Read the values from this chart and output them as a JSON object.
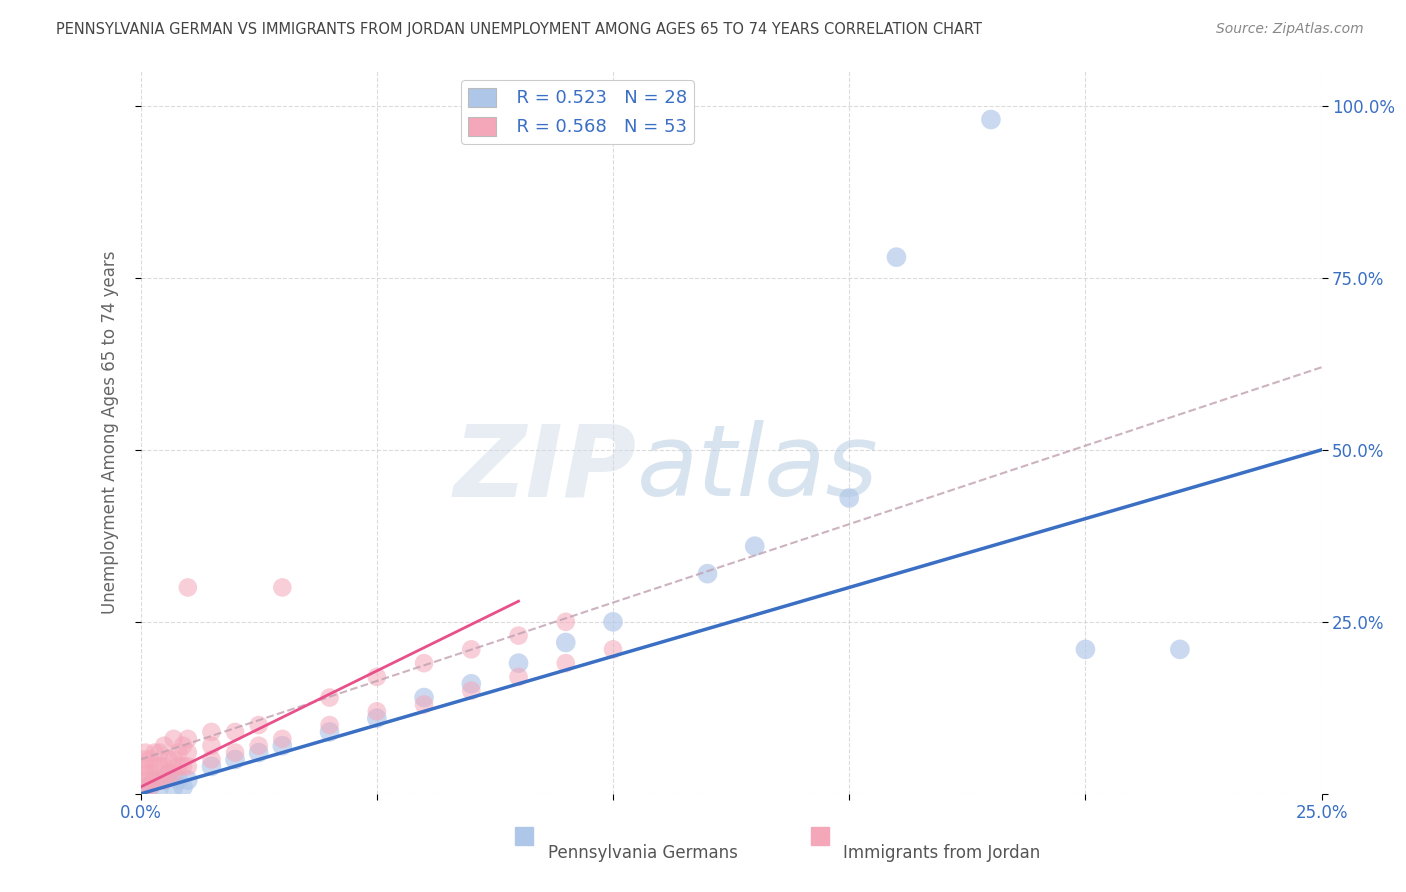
{
  "title": "PENNSYLVANIA GERMAN VS IMMIGRANTS FROM JORDAN UNEMPLOYMENT AMONG AGES 65 TO 74 YEARS CORRELATION CHART",
  "source": "Source: ZipAtlas.com",
  "ylabel": "Unemployment Among Ages 65 to 74 years",
  "xlim": [
    0,
    0.25
  ],
  "ylim": [
    0,
    1.05
  ],
  "xticks": [
    0.0,
    0.05,
    0.1,
    0.15,
    0.2,
    0.25
  ],
  "yticks": [
    0.0,
    0.25,
    0.5,
    0.75,
    1.0
  ],
  "xticklabels": [
    "0.0%",
    "",
    "",
    "",
    "",
    "25.0%"
  ],
  "yticklabels_right": [
    "",
    "25.0%",
    "50.0%",
    "75.0%",
    "100.0%"
  ],
  "legend_r1": "R = 0.523",
  "legend_n1": "N = 28",
  "legend_r2": "R = 0.568",
  "legend_n2": "N = 53",
  "watermark": "ZIPatlas",
  "blue_color": "#aec6e8",
  "pink_color": "#f4a7b9",
  "blue_line_color": "#3a6fc4",
  "pink_line_color": "#e8508a",
  "dashed_line_color": "#c0a0b0",
  "background_color": "#ffffff",
  "grid_color": "#cccccc",
  "title_color": "#444444",
  "tick_color": "#3a6fc4",
  "blue_scatter_x": [
    0.001,
    0.002,
    0.003,
    0.004,
    0.005,
    0.006,
    0.007,
    0.008,
    0.009,
    0.01,
    0.015,
    0.02,
    0.025,
    0.03,
    0.04,
    0.05,
    0.06,
    0.07,
    0.08,
    0.09,
    0.1,
    0.12,
    0.13,
    0.15,
    0.16,
    0.18,
    0.2,
    0.22
  ],
  "blue_scatter_y": [
    0.01,
    0.01,
    0.02,
    0.01,
    0.02,
    0.03,
    0.01,
    0.02,
    0.01,
    0.02,
    0.04,
    0.05,
    0.06,
    0.07,
    0.09,
    0.11,
    0.14,
    0.16,
    0.19,
    0.22,
    0.25,
    0.32,
    0.36,
    0.43,
    0.78,
    0.98,
    0.21,
    0.21
  ],
  "pink_scatter_x": [
    0.001,
    0.001,
    0.001,
    0.001,
    0.001,
    0.001,
    0.002,
    0.002,
    0.002,
    0.003,
    0.003,
    0.003,
    0.004,
    0.004,
    0.004,
    0.005,
    0.005,
    0.005,
    0.006,
    0.006,
    0.007,
    0.007,
    0.007,
    0.008,
    0.008,
    0.009,
    0.009,
    0.01,
    0.01,
    0.01,
    0.01,
    0.015,
    0.015,
    0.015,
    0.02,
    0.02,
    0.025,
    0.025,
    0.03,
    0.03,
    0.04,
    0.04,
    0.05,
    0.05,
    0.06,
    0.06,
    0.07,
    0.07,
    0.08,
    0.08,
    0.09,
    0.09,
    0.1
  ],
  "pink_scatter_y": [
    0.01,
    0.02,
    0.03,
    0.04,
    0.05,
    0.06,
    0.01,
    0.03,
    0.05,
    0.02,
    0.04,
    0.06,
    0.02,
    0.04,
    0.06,
    0.02,
    0.04,
    0.07,
    0.03,
    0.05,
    0.03,
    0.05,
    0.08,
    0.04,
    0.06,
    0.04,
    0.07,
    0.04,
    0.06,
    0.08,
    0.3,
    0.05,
    0.07,
    0.09,
    0.06,
    0.09,
    0.07,
    0.1,
    0.08,
    0.3,
    0.1,
    0.14,
    0.12,
    0.17,
    0.13,
    0.19,
    0.15,
    0.21,
    0.17,
    0.23,
    0.19,
    0.25,
    0.21
  ],
  "blue_trend_x": [
    0.0,
    0.25
  ],
  "blue_trend_y": [
    0.0,
    0.5
  ],
  "pink_trend_x": [
    0.0,
    0.08
  ],
  "pink_trend_y": [
    0.01,
    0.28
  ],
  "dashed_trend_x": [
    0.0,
    0.25
  ],
  "dashed_trend_y": [
    0.05,
    0.62
  ]
}
